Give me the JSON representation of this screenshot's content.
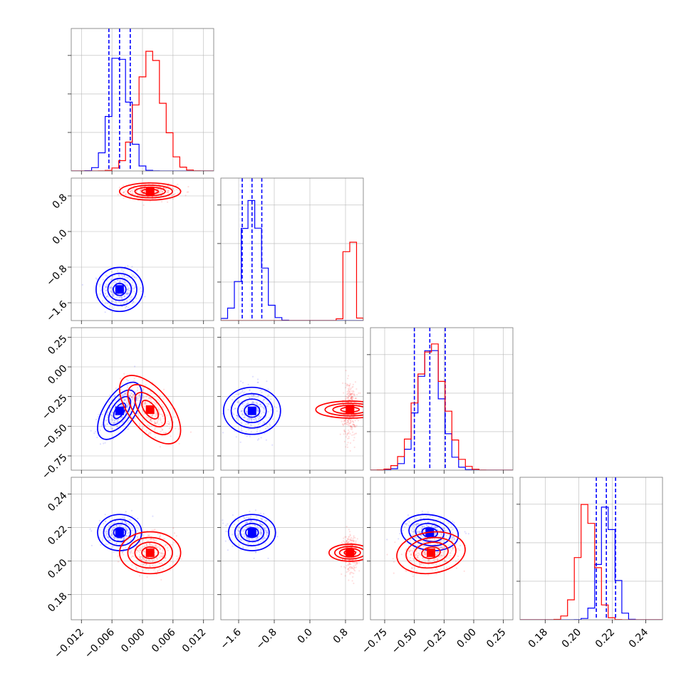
{
  "colors": {
    "blue": "#0000ff",
    "red": "#ff0000"
  },
  "chart_data": {
    "type": "corner",
    "grid": true,
    "parameters": [
      {
        "range": [
          -0.014,
          0.014
        ],
        "ticks": [
          -0.012,
          -0.006,
          0.0,
          0.006,
          0.012
        ],
        "tick_labels": [
          "−0.012",
          "−0.006",
          "0.000",
          "0.006",
          "0.012"
        ],
        "hist_max": 1.2
      },
      {
        "range": [
          -2.0,
          1.2
        ],
        "ticks": [
          -1.6,
          -0.8,
          0.0,
          0.8
        ],
        "tick_labels": [
          "−1.6",
          "−0.8",
          "0.0",
          "0.8"
        ],
        "hist_max": 1.2
      },
      {
        "range": [
          -0.87,
          0.33
        ],
        "ticks": [
          -0.75,
          -0.5,
          -0.25,
          0.0,
          0.25
        ],
        "tick_labels": [
          "−0.75",
          "−0.50",
          "−0.25",
          "0.00",
          "0.25"
        ],
        "hist_max": 1.15
      },
      {
        "range": [
          0.165,
          0.25
        ],
        "ticks": [
          0.18,
          0.2,
          0.22,
          0.24
        ],
        "tick_labels": [
          "0.18",
          "0.20",
          "0.22",
          "0.24"
        ],
        "hist_max": 1.25
      }
    ],
    "series": [
      {
        "color": "blue",
        "mean": [
          -0.0045,
          -1.3,
          -0.37,
          0.217
        ],
        "sd": [
          0.0018,
          0.22,
          0.1,
          0.0045
        ],
        "corr": [
          [
            0,
            2,
            0.6
          ],
          [
            2,
            3,
            -0.15
          ]
        ],
        "quantiles": [
          [
            -0.0066,
            -0.0045,
            -0.0024
          ],
          [
            -1.52,
            -1.3,
            -1.08
          ],
          [
            -0.5,
            -0.37,
            -0.24
          ],
          [
            0.2105,
            0.2165,
            0.222
          ]
        ]
      },
      {
        "color": "red",
        "mean": [
          0.0015,
          0.9,
          -0.36,
          0.205
        ],
        "sd": [
          0.0025,
          0.08,
          0.12,
          0.0052
        ],
        "corr": [
          [
            0,
            2,
            -0.6
          ],
          [
            2,
            3,
            0.15
          ]
        ],
        "quantiles": []
      }
    ]
  }
}
